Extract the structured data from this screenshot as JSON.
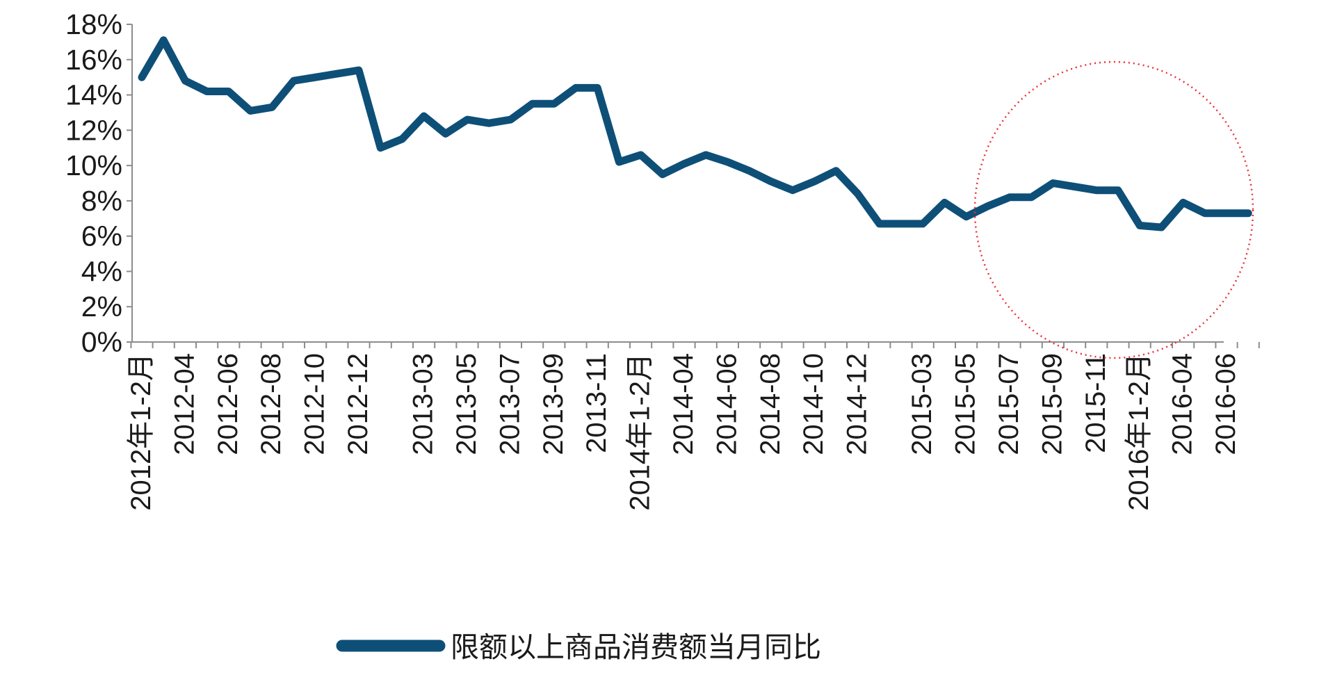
{
  "chart_data": {
    "type": "line",
    "ylim": [
      0,
      18
    ],
    "y_ticks": [
      "0%",
      "2%",
      "4%",
      "6%",
      "8%",
      "10%",
      "12%",
      "14%",
      "16%",
      "18%"
    ],
    "grid": false,
    "legend_position": "bottom",
    "x": [
      "2012年1-2月",
      "2012-03",
      "2012-04",
      "2012-05",
      "2012-06",
      "2012-07",
      "2012-08",
      "2012-09",
      "2012-10",
      "2012-11",
      "2012-12",
      "2013-01",
      "2013-02",
      "2013-03",
      "2013-04",
      "2013-05",
      "2013-06",
      "2013-07",
      "2013-08",
      "2013-09",
      "2013-10",
      "2013-11",
      "2013-12",
      "2014年1-2月",
      "2014-03",
      "2014-04",
      "2014-05",
      "2014-06",
      "2014-07",
      "2014-08",
      "2014-09",
      "2014-10",
      "2014-11",
      "2014-12",
      "2015-01",
      "2015-02",
      "2015-03",
      "2015-04",
      "2015-05",
      "2015-06",
      "2015-07",
      "2015-08",
      "2015-09",
      "2015-10",
      "2015-11",
      "2015-12",
      "2016年1-2月",
      "2016-03",
      "2016-04",
      "2016-05",
      "2016-06",
      "2016-07"
    ],
    "x_tick_labels": [
      "2012年1-2月",
      "2012-04",
      "2012-06",
      "2012-08",
      "2012-10",
      "2012-12",
      "2013-03",
      "2013-05",
      "2013-07",
      "2013-09",
      "2013-11",
      "2014年1-2月",
      "2014-04",
      "2014-06",
      "2014-08",
      "2014-10",
      "2014-12",
      "2015-03",
      "2015-05",
      "2015-07",
      "2015-09",
      "2015-11",
      "2016年1-2月",
      "2016-04",
      "2016-06"
    ],
    "x_tick_indices": [
      0,
      2,
      4,
      6,
      8,
      10,
      13,
      15,
      17,
      19,
      21,
      23,
      25,
      27,
      29,
      31,
      33,
      36,
      38,
      40,
      42,
      44,
      46,
      48,
      50
    ],
    "series": [
      {
        "name": "限额以上商品消费额当月同比",
        "color": "#0e4f78",
        "values": [
          15.0,
          17.1,
          14.8,
          14.2,
          14.2,
          13.1,
          13.3,
          14.8,
          15.0,
          15.2,
          15.4,
          11.0,
          11.5,
          12.8,
          11.8,
          12.6,
          12.4,
          12.6,
          13.5,
          13.5,
          14.4,
          14.4,
          10.2,
          10.6,
          9.5,
          10.1,
          10.6,
          10.2,
          9.7,
          9.1,
          8.6,
          9.1,
          9.7,
          8.4,
          6.7,
          6.7,
          6.7,
          7.9,
          7.1,
          7.7,
          8.2,
          8.2,
          9.0,
          8.8,
          8.6,
          8.6,
          6.6,
          6.5,
          7.9,
          7.3,
          7.3,
          7.3
        ]
      }
    ]
  },
  "legend": {
    "label": "限额以上商品消费额当月同比",
    "color": "#0e4f78"
  },
  "annotation": {
    "type": "dotted-circle",
    "color": "#e8323c"
  }
}
